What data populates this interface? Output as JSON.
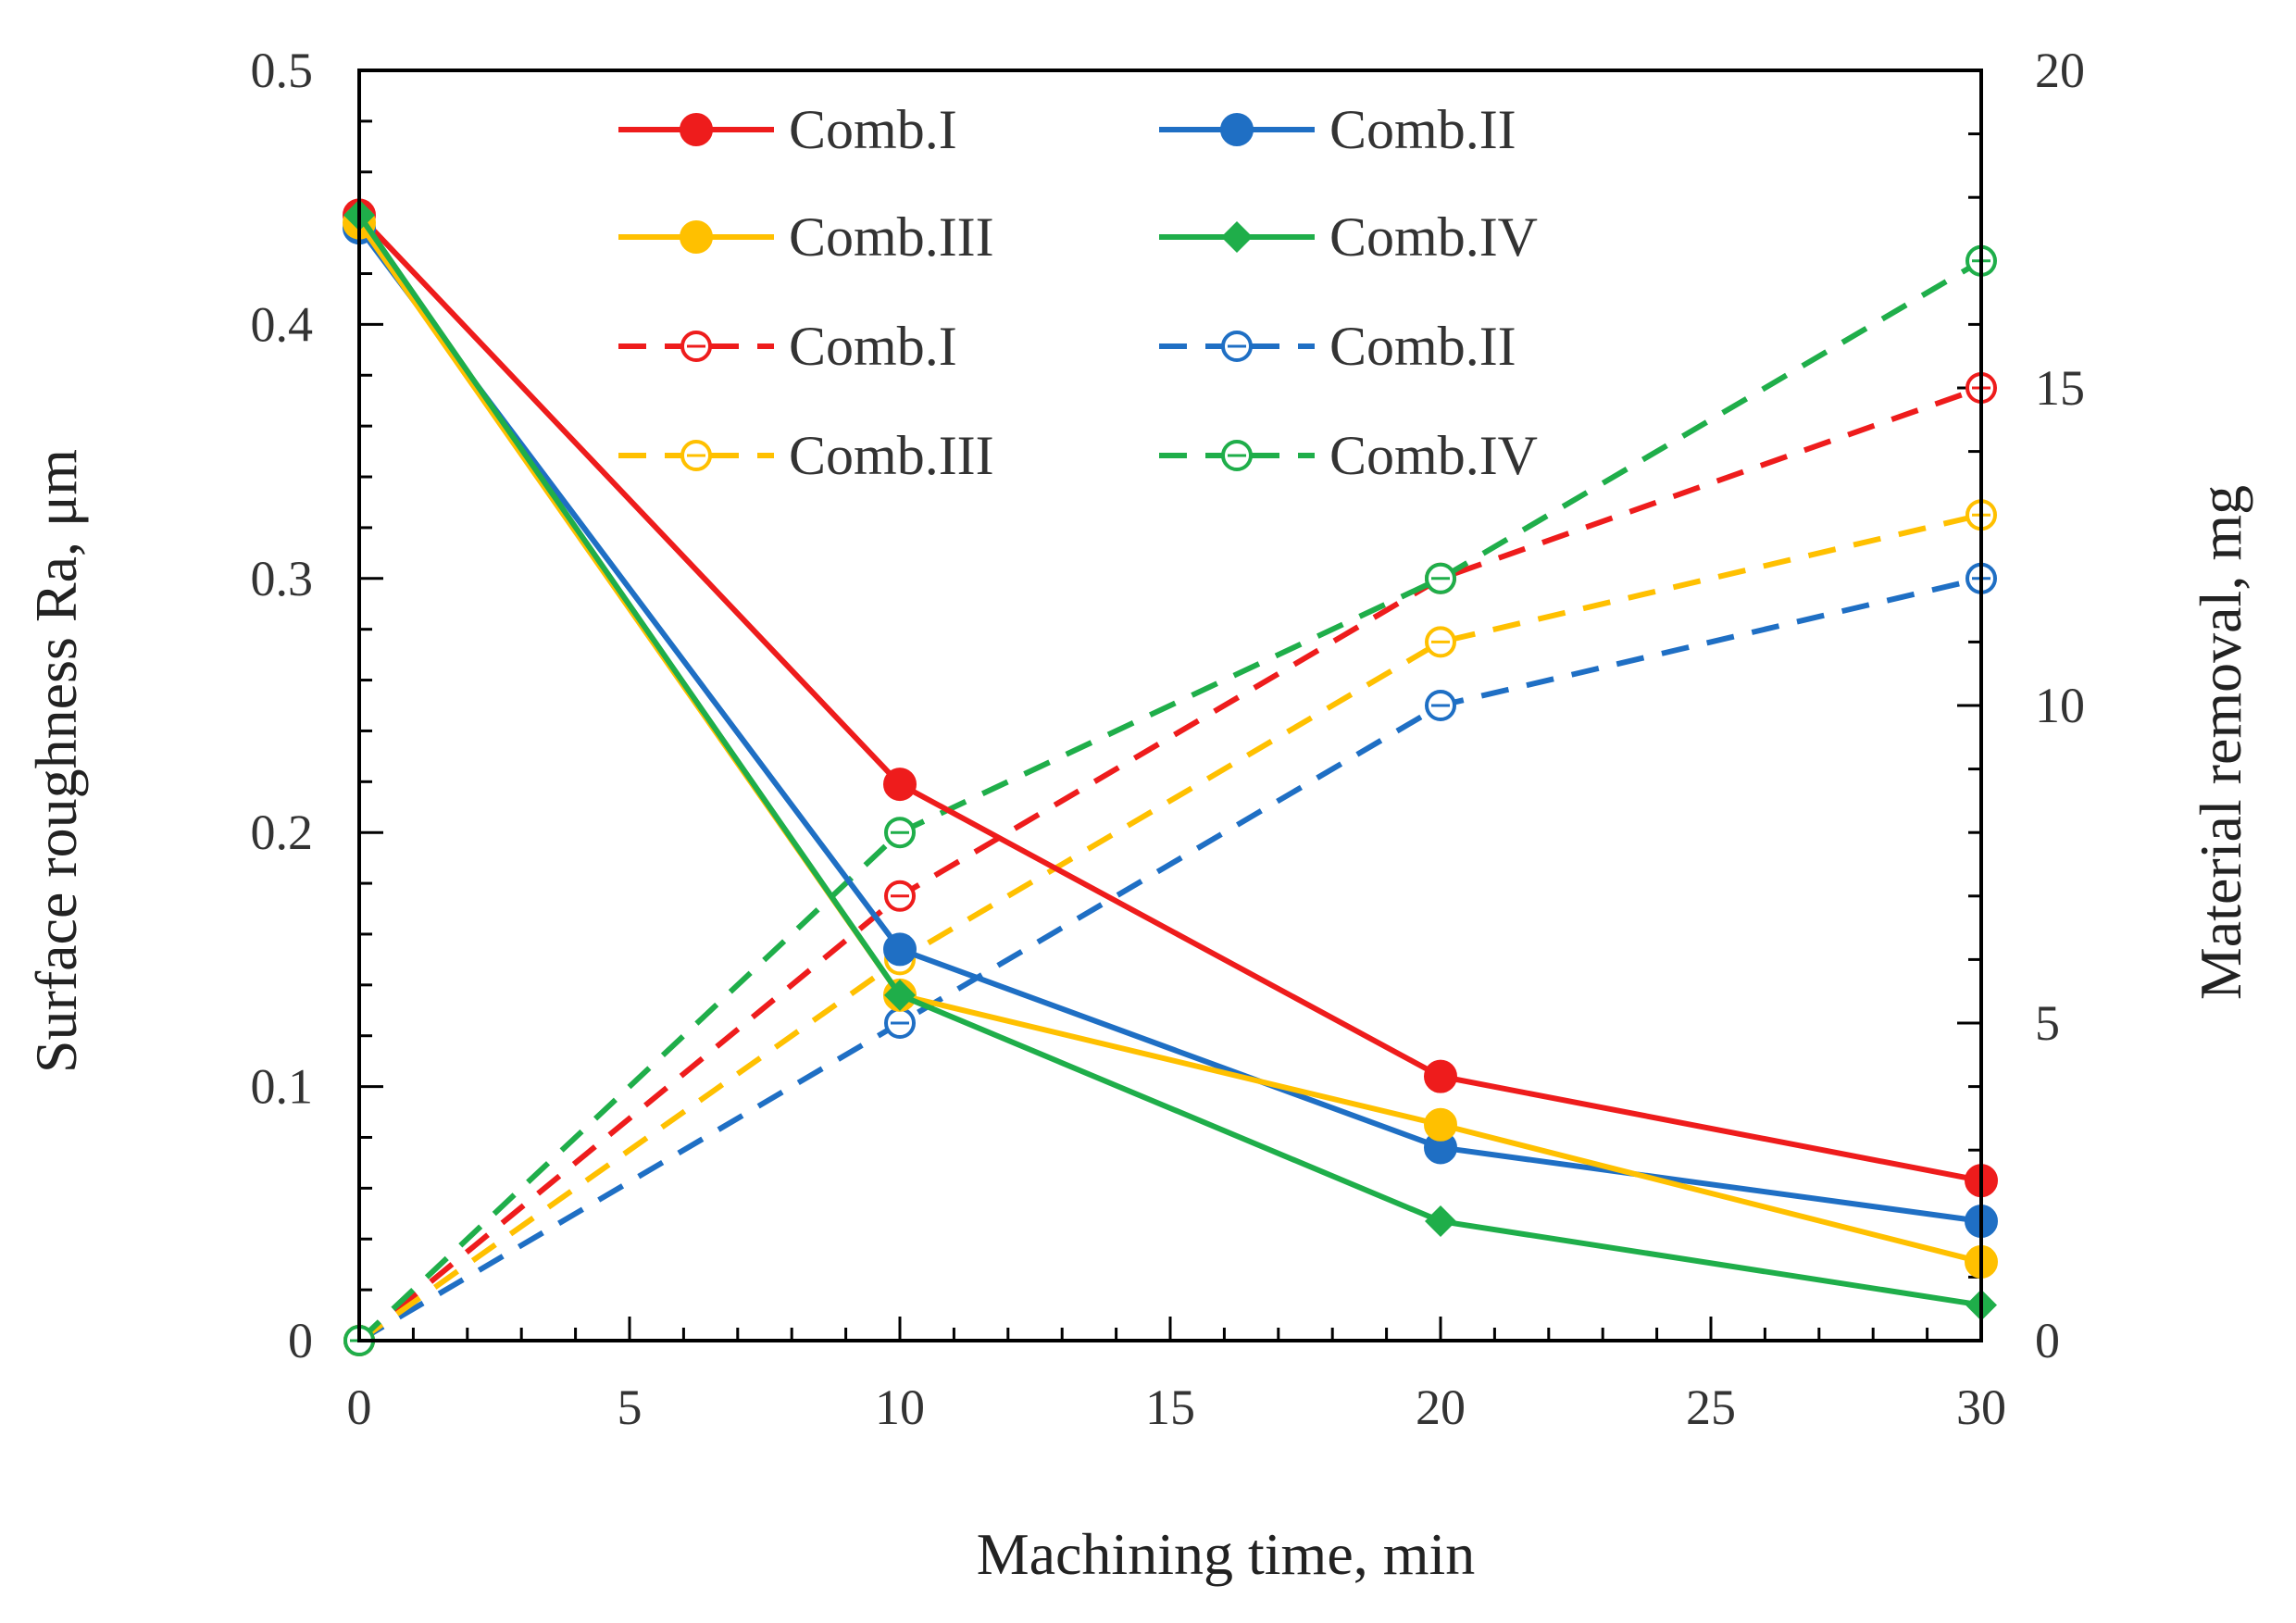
{
  "chart_data": {
    "type": "line",
    "xlabel": "Machining time, min",
    "ylabel_left": "Surface roughness Ra,  μm",
    "ylabel_right": "Material removal, mg",
    "xlim": [
      0,
      30
    ],
    "ylim_left": [
      0,
      0.5
    ],
    "ylim_right": [
      0,
      20
    ],
    "x_ticks": [
      "0",
      "5",
      "10",
      "15",
      "20",
      "25",
      "30"
    ],
    "y_left_ticks": [
      "0",
      "0.1",
      "0.2",
      "0.3",
      "0.4",
      "0.5"
    ],
    "y_right_ticks": [
      "0",
      "5",
      "10",
      "15",
      "20"
    ],
    "legend_placement": "top-center",
    "series": [
      {
        "name": "Comb.I",
        "axis": "left",
        "style": "solid",
        "marker": "circle",
        "color": "#ee1c1c",
        "x": [
          0,
          10,
          20,
          30
        ],
        "values": [
          0.443,
          0.219,
          0.104,
          0.063
        ]
      },
      {
        "name": "Comb.II",
        "axis": "left",
        "style": "solid",
        "marker": "circle",
        "color": "#1f6fc4",
        "x": [
          0,
          10,
          20,
          30
        ],
        "values": [
          0.438,
          0.154,
          0.076,
          0.047
        ]
      },
      {
        "name": "Comb.III",
        "axis": "left",
        "style": "solid",
        "marker": "circle",
        "color": "#ffc000",
        "x": [
          0,
          10,
          20,
          30
        ],
        "values": [
          0.44,
          0.136,
          0.085,
          0.031
        ]
      },
      {
        "name": "Comb.IV",
        "axis": "left",
        "style": "solid",
        "marker": "diamond",
        "color": "#1fae4a",
        "x": [
          0,
          10,
          20,
          30
        ],
        "values": [
          0.443,
          0.136,
          0.047,
          0.014
        ]
      },
      {
        "name": "Comb.I",
        "axis": "right",
        "style": "dashed",
        "marker": "open-circle",
        "color": "#ee1c1c",
        "x": [
          0,
          10,
          20,
          30
        ],
        "values": [
          0,
          7,
          12,
          15
        ]
      },
      {
        "name": "Comb.II",
        "axis": "right",
        "style": "dashed",
        "marker": "open-circle",
        "color": "#1f6fc4",
        "x": [
          0,
          10,
          20,
          30
        ],
        "values": [
          0,
          5,
          10,
          12
        ]
      },
      {
        "name": "Comb.III",
        "axis": "right",
        "style": "dashed",
        "marker": "open-circle",
        "color": "#ffc000",
        "x": [
          0,
          10,
          20,
          30
        ],
        "values": [
          0,
          6,
          11,
          13
        ]
      },
      {
        "name": "Comb.IV",
        "axis": "right",
        "style": "dashed",
        "marker": "open-circle",
        "color": "#1fae4a",
        "x": [
          0,
          10,
          20,
          30
        ],
        "values": [
          0,
          8,
          12,
          17
        ]
      }
    ]
  }
}
